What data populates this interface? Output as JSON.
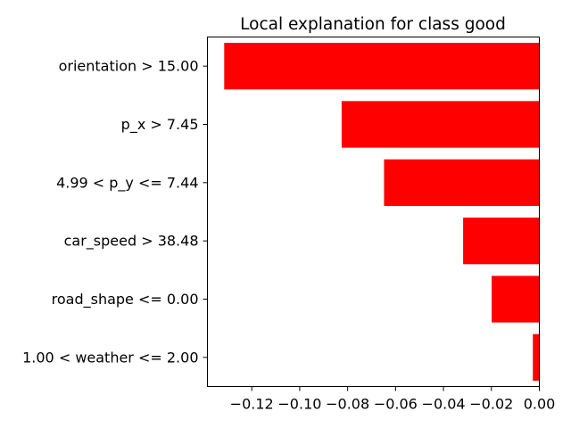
{
  "chart_data": {
    "type": "bar",
    "orientation": "horizontal",
    "title": "Local explanation for class good",
    "xlabel": "",
    "ylabel": "",
    "categories": [
      "orientation > 15.00",
      "p_x > 7.45",
      "4.99 < p_y <= 7.44",
      "car_speed > 38.48",
      "road_shape <= 0.00",
      "1.00 < weather <= 2.00"
    ],
    "values": [
      -0.1315,
      -0.0825,
      -0.0648,
      -0.0318,
      -0.0199,
      -0.0027
    ],
    "xlim": [
      -0.1385,
      0.0
    ],
    "xticks": [
      -0.12,
      -0.1,
      -0.08,
      -0.06,
      -0.04,
      -0.02,
      0.0
    ],
    "xtick_labels": [
      "−0.12",
      "−0.10",
      "−0.08",
      "−0.06",
      "−0.04",
      "−0.02",
      "0.00"
    ],
    "bar_color": "#ff0000",
    "grid": false,
    "legend": "none"
  }
}
